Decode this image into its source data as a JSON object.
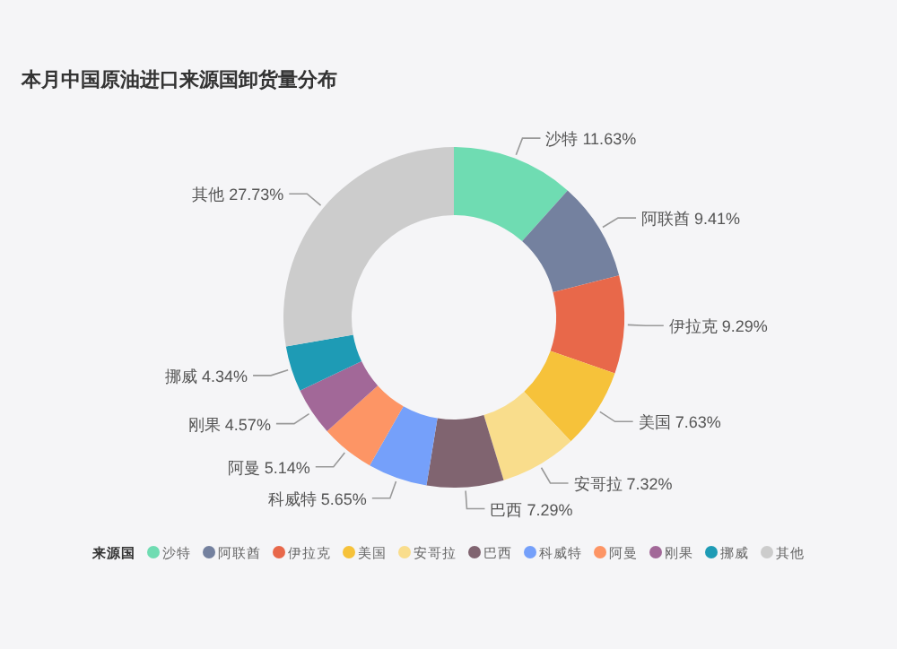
{
  "chart_data": {
    "type": "donut",
    "title": "本月中国原油进口来源国卸货量分布",
    "categories": [
      "沙特",
      "阿联酋",
      "伊拉克",
      "美国",
      "安哥拉",
      "巴西",
      "科威特",
      "阿曼",
      "刚果",
      "挪威",
      "其他"
    ],
    "values": [
      11.63,
      9.41,
      9.29,
      7.63,
      7.32,
      7.29,
      5.65,
      5.14,
      4.57,
      4.34,
      27.73
    ],
    "value_labels": [
      "11.63%",
      "9.41%",
      "9.29%",
      "7.63%",
      "7.32%",
      "7.29%",
      "5.65%",
      "5.14%",
      "4.57%",
      "4.34%",
      "27.73%"
    ],
    "colors": [
      "#6fdcb2",
      "#74819f",
      "#e8684a",
      "#f6c23a",
      "#f9dd8c",
      "#806470",
      "#75a0fa",
      "#fd9565",
      "#a26898",
      "#1e9bb5",
      "#cccccc"
    ],
    "legend": "bottom",
    "legend_title": "来源国"
  }
}
